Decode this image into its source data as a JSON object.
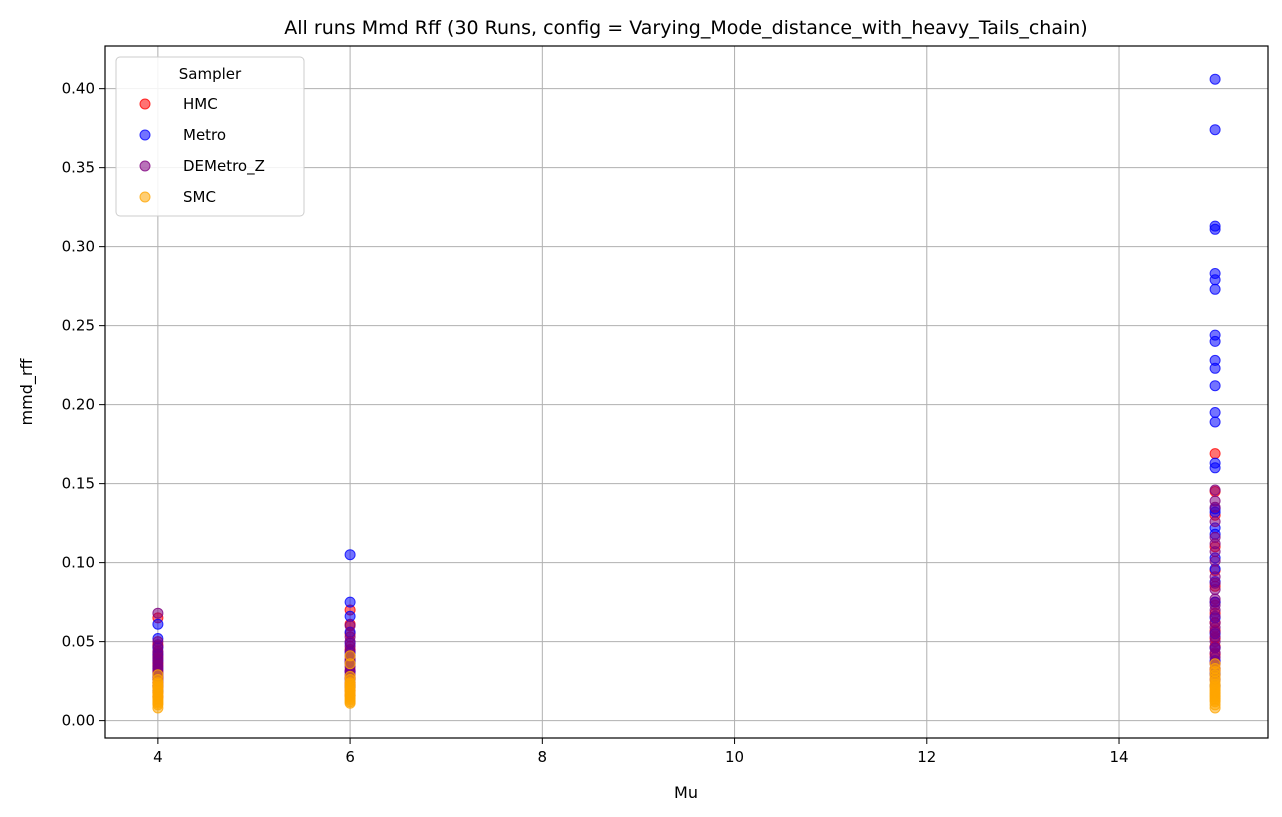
{
  "chart_data": {
    "type": "scatter",
    "title": "All runs Mmd Rff (30 Runs, config = Varying_Mode_distance_with_heavy_Tails_chain)",
    "xlabel": "Mu",
    "ylabel": "mmd_rff",
    "xlim": [
      3.45,
      15.55
    ],
    "ylim": [
      -0.011,
      0.427
    ],
    "xticks": [
      4,
      6,
      8,
      10,
      12,
      14
    ],
    "yticks": [
      0.0,
      0.05,
      0.1,
      0.15,
      0.2,
      0.25,
      0.3,
      0.35,
      0.4
    ],
    "ytick_labels": [
      "0.00",
      "0.05",
      "0.10",
      "0.15",
      "0.20",
      "0.25",
      "0.30",
      "0.35",
      "0.40"
    ],
    "grid": true,
    "legend": {
      "title": "Sampler",
      "placement": "upper-left"
    },
    "series": [
      {
        "name": "HMC",
        "color": "#ff0000",
        "points": [
          [
            4,
            0.065
          ],
          [
            4,
            0.048
          ],
          [
            4,
            0.041
          ],
          [
            4,
            0.036
          ],
          [
            4,
            0.031
          ],
          [
            4,
            0.027
          ],
          [
            4,
            0.024
          ],
          [
            4,
            0.021
          ],
          [
            4,
            0.018
          ],
          [
            4,
            0.015
          ],
          [
            6,
            0.07
          ],
          [
            6,
            0.061
          ],
          [
            6,
            0.055
          ],
          [
            6,
            0.045
          ],
          [
            6,
            0.038
          ],
          [
            6,
            0.032
          ],
          [
            6,
            0.027
          ],
          [
            6,
            0.023
          ],
          [
            6,
            0.019
          ],
          [
            6,
            0.016
          ],
          [
            15,
            0.169
          ],
          [
            15,
            0.145
          ],
          [
            15,
            0.13
          ],
          [
            15,
            0.11
          ],
          [
            15,
            0.095
          ],
          [
            15,
            0.085
          ],
          [
            15,
            0.075
          ],
          [
            15,
            0.068
          ],
          [
            15,
            0.062
          ],
          [
            15,
            0.057
          ],
          [
            15,
            0.052
          ],
          [
            15,
            0.047
          ],
          [
            15,
            0.042
          ],
          [
            15,
            0.037
          ],
          [
            15,
            0.032
          ]
        ]
      },
      {
        "name": "Metro",
        "color": "#0000ff",
        "points": [
          [
            4,
            0.061
          ],
          [
            4,
            0.052
          ],
          [
            4,
            0.046
          ],
          [
            4,
            0.042
          ],
          [
            4,
            0.038
          ],
          [
            4,
            0.033
          ],
          [
            4,
            0.029
          ],
          [
            4,
            0.026
          ],
          [
            4,
            0.022
          ],
          [
            4,
            0.019
          ],
          [
            6,
            0.105
          ],
          [
            6,
            0.075
          ],
          [
            6,
            0.066
          ],
          [
            6,
            0.056
          ],
          [
            6,
            0.049
          ],
          [
            6,
            0.043
          ],
          [
            6,
            0.037
          ],
          [
            6,
            0.031
          ],
          [
            6,
            0.026
          ],
          [
            6,
            0.022
          ],
          [
            15,
            0.406
          ],
          [
            15,
            0.374
          ],
          [
            15,
            0.313
          ],
          [
            15,
            0.311
          ],
          [
            15,
            0.283
          ],
          [
            15,
            0.279
          ],
          [
            15,
            0.273
          ],
          [
            15,
            0.244
          ],
          [
            15,
            0.24
          ],
          [
            15,
            0.228
          ],
          [
            15,
            0.223
          ],
          [
            15,
            0.212
          ],
          [
            15,
            0.195
          ],
          [
            15,
            0.189
          ],
          [
            15,
            0.163
          ],
          [
            15,
            0.16
          ],
          [
            15,
            0.134
          ],
          [
            15,
            0.132
          ],
          [
            15,
            0.122
          ],
          [
            15,
            0.118
          ],
          [
            15,
            0.103
          ],
          [
            15,
            0.096
          ],
          [
            15,
            0.088
          ],
          [
            15,
            0.075
          ],
          [
            15,
            0.065
          ],
          [
            15,
            0.055
          ],
          [
            15,
            0.046
          ],
          [
            15,
            0.038
          ],
          [
            15,
            0.03
          ],
          [
            15,
            0.022
          ]
        ]
      },
      {
        "name": "DEMetro_Z",
        "color": "#800080",
        "points": [
          [
            4,
            0.068
          ],
          [
            4,
            0.05
          ],
          [
            4,
            0.047
          ],
          [
            4,
            0.044
          ],
          [
            4,
            0.043
          ],
          [
            4,
            0.04
          ],
          [
            4,
            0.039
          ],
          [
            4,
            0.037
          ],
          [
            4,
            0.035
          ],
          [
            4,
            0.034
          ],
          [
            4,
            0.032
          ],
          [
            4,
            0.03
          ],
          [
            4,
            0.028
          ],
          [
            4,
            0.026
          ],
          [
            4,
            0.024
          ],
          [
            4,
            0.022
          ],
          [
            6,
            0.06
          ],
          [
            6,
            0.053
          ],
          [
            6,
            0.05
          ],
          [
            6,
            0.047
          ],
          [
            6,
            0.044
          ],
          [
            6,
            0.041
          ],
          [
            6,
            0.039
          ],
          [
            6,
            0.036
          ],
          [
            6,
            0.034
          ],
          [
            6,
            0.031
          ],
          [
            6,
            0.029
          ],
          [
            6,
            0.027
          ],
          [
            6,
            0.024
          ],
          [
            6,
            0.021
          ],
          [
            15,
            0.146
          ],
          [
            15,
            0.139
          ],
          [
            15,
            0.135
          ],
          [
            15,
            0.126
          ],
          [
            15,
            0.116
          ],
          [
            15,
            0.112
          ],
          [
            15,
            0.107
          ],
          [
            15,
            0.101
          ],
          [
            15,
            0.091
          ],
          [
            15,
            0.087
          ],
          [
            15,
            0.083
          ],
          [
            15,
            0.077
          ],
          [
            15,
            0.073
          ],
          [
            15,
            0.07
          ],
          [
            15,
            0.066
          ],
          [
            15,
            0.062
          ],
          [
            15,
            0.059
          ],
          [
            15,
            0.056
          ],
          [
            15,
            0.053
          ],
          [
            15,
            0.05
          ],
          [
            15,
            0.046
          ],
          [
            15,
            0.043
          ],
          [
            15,
            0.04
          ],
          [
            15,
            0.036
          ],
          [
            15,
            0.033
          ],
          [
            15,
            0.029
          ],
          [
            15,
            0.026
          ]
        ]
      },
      {
        "name": "SMC",
        "color": "#ffa500",
        "points": [
          [
            4,
            0.029
          ],
          [
            4,
            0.026
          ],
          [
            4,
            0.024
          ],
          [
            4,
            0.023
          ],
          [
            4,
            0.022
          ],
          [
            4,
            0.021
          ],
          [
            4,
            0.02
          ],
          [
            4,
            0.019
          ],
          [
            4,
            0.018
          ],
          [
            4,
            0.017
          ],
          [
            4,
            0.016
          ],
          [
            4,
            0.015
          ],
          [
            4,
            0.014
          ],
          [
            4,
            0.013
          ],
          [
            4,
            0.012
          ],
          [
            4,
            0.011
          ],
          [
            4,
            0.01
          ],
          [
            4,
            0.008
          ],
          [
            6,
            0.041
          ],
          [
            6,
            0.036
          ],
          [
            6,
            0.028
          ],
          [
            6,
            0.026
          ],
          [
            6,
            0.024
          ],
          [
            6,
            0.023
          ],
          [
            6,
            0.022
          ],
          [
            6,
            0.021
          ],
          [
            6,
            0.02
          ],
          [
            6,
            0.019
          ],
          [
            6,
            0.018
          ],
          [
            6,
            0.017
          ],
          [
            6,
            0.016
          ],
          [
            6,
            0.015
          ],
          [
            6,
            0.014
          ],
          [
            6,
            0.013
          ],
          [
            6,
            0.012
          ],
          [
            6,
            0.011
          ],
          [
            15,
            0.036
          ],
          [
            15,
            0.033
          ],
          [
            15,
            0.031
          ],
          [
            15,
            0.029
          ],
          [
            15,
            0.027
          ],
          [
            15,
            0.025
          ],
          [
            15,
            0.023
          ],
          [
            15,
            0.022
          ],
          [
            15,
            0.021
          ],
          [
            15,
            0.02
          ],
          [
            15,
            0.019
          ],
          [
            15,
            0.018
          ],
          [
            15,
            0.017
          ],
          [
            15,
            0.016
          ],
          [
            15,
            0.015
          ],
          [
            15,
            0.014
          ],
          [
            15,
            0.013
          ],
          [
            15,
            0.012
          ],
          [
            15,
            0.01
          ],
          [
            15,
            0.008
          ]
        ]
      }
    ]
  }
}
